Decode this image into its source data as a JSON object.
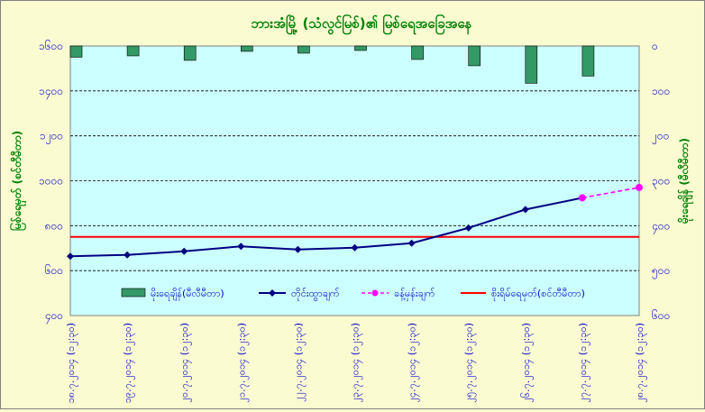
{
  "chart_data": {
    "type": "bar+line",
    "title": "ဘားအံမြို့ (သံလွင်မြစ်)၏ မြစ်ရေအခြေအနေ",
    "ylabel_left": "မြစ်ရေမှတ် (စင်တီမီတာ)",
    "ylabel_right": "မိုးရေချိန် (မီလီမီတာ)",
    "ylim_left": [
      400,
      1600
    ],
    "ylim_right": [
      0,
      600
    ],
    "yticks_left": [
      "၄၀၀",
      "၆၀၀",
      "၈၀၀",
      "၁၀၀၀",
      "၁၂၀၀",
      "၁၄၀၀",
      "၁၆၀၀"
    ],
    "yticks_right": [
      "၆၀၀",
      "၅၀၀",
      "၄၀၀",
      "၃၀၀",
      "၂၀၀",
      "၁၀၀",
      "၀"
    ],
    "categories": [
      "၁၈.၇.၂၀၁၄ (၁၂:၃၀)",
      "၁၉.၇.၂၀၁၄ (၁၂:၃၀)",
      "၂၀.၇.၂၀၁၄ (၁၂:၃၀)",
      "၂၁.၇.၂၀၁၄ (၁၂:၃၀)",
      "၂၂.၇.၂၀၁၄ (၁၂:၃၀)",
      "၂၃.၇.၂၀၁၄ (၁၂:၃၀)",
      "၂၄.၇.၂၀၁၄ (၁၂:၃၀)",
      "၂၅.၇.၂၀၁၄ (၁၂:၃၀)",
      "၂၆.၇.၂၀၁၄ (၁၂:၃၀)",
      "၂၇.၇.၂၀၁၄ (၁၂:၃၀)",
      "၂၈.၇.၂၀၁၄ (၁၂:၃၀)"
    ],
    "series": [
      {
        "name": "မိုးရေချိန်(မီလီမီတာ)",
        "type": "bar",
        "axis": "right",
        "color": "#339966",
        "values": [
          25,
          22,
          32,
          12,
          16,
          10,
          30,
          44,
          83,
          67,
          null
        ]
      },
      {
        "name": "တိုင်းထွာချက်",
        "type": "line",
        "axis": "left",
        "color": "#000080",
        "values": [
          664,
          670,
          686,
          708,
          694,
          702,
          722,
          790,
          872,
          924,
          null
        ]
      },
      {
        "name": "ခန့်မှန်းချက်",
        "type": "line-dashed",
        "axis": "left",
        "color": "#ff00ff",
        "values": [
          null,
          null,
          null,
          null,
          null,
          null,
          null,
          null,
          null,
          924,
          970
        ]
      },
      {
        "name": "စိုးရိမ်ရေမှတ်(စင်တီမီတာ)",
        "type": "hline",
        "axis": "left",
        "color": "#ff0000",
        "value": 750
      }
    ],
    "legend": "bottom",
    "grid": true
  }
}
